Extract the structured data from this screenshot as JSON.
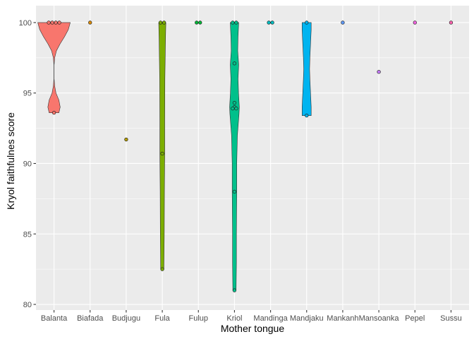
{
  "chart_data": {
    "type": "violin",
    "xlabel": "Mother tongue",
    "ylabel": "Kryol faithfulnes score",
    "ylim": [
      79.6,
      101.2
    ],
    "yticks": [
      80,
      85,
      90,
      95,
      100
    ],
    "grid": true,
    "legend": "none",
    "categories": [
      "Balanta",
      "Biafada",
      "Budjugu",
      "Fula",
      "Fulup",
      "Kriol",
      "Mandinga",
      "Mandjaku",
      "Mankanh",
      "Mansoanka",
      "Pepel",
      "Sussu"
    ],
    "colors": [
      "#F8766D",
      "#DE8C00",
      "#B79F00",
      "#7CAE00",
      "#00BA38",
      "#00C08B",
      "#00BFC4",
      "#00B4F0",
      "#619CFF",
      "#C77CFF",
      "#F564E3",
      "#FF64B0"
    ],
    "groups": [
      {
        "name": "Balanta",
        "points": [
          100,
          100,
          100,
          100,
          93.6
        ],
        "density": [
          [
            93.6,
            0.3
          ],
          [
            94.0,
            0.38
          ],
          [
            94.5,
            0.3
          ],
          [
            95.0,
            0.12
          ],
          [
            95.5,
            0.04
          ],
          [
            96.0,
            0.005
          ],
          [
            97.0,
            0.005
          ],
          [
            97.5,
            0.04
          ],
          [
            98.0,
            0.15
          ],
          [
            98.5,
            0.38
          ],
          [
            99.0,
            0.65
          ],
          [
            99.5,
            0.88
          ],
          [
            100.0,
            1.0
          ]
        ]
      },
      {
        "name": "Biafada",
        "points": [
          100
        ],
        "density": []
      },
      {
        "name": "Budjugu",
        "points": [
          91.7
        ],
        "density": []
      },
      {
        "name": "Fula",
        "points": [
          100,
          100,
          90.7,
          82.5
        ],
        "density": [
          [
            82.5,
            0.1
          ],
          [
            85.0,
            0.12
          ],
          [
            88.0,
            0.13
          ],
          [
            90.7,
            0.15
          ],
          [
            93.0,
            0.15
          ],
          [
            96.0,
            0.16
          ],
          [
            99.0,
            0.2
          ],
          [
            100.0,
            0.22
          ]
        ]
      },
      {
        "name": "Fulup",
        "points": [
          100,
          100
        ],
        "density": []
      },
      {
        "name": "Kriol",
        "points": [
          100,
          100,
          97.1,
          94.3,
          94.0,
          93.9,
          93.9,
          88.0,
          81.0
        ],
        "density": [
          [
            81.0,
            0.1
          ],
          [
            83.0,
            0.12
          ],
          [
            85.0,
            0.12
          ],
          [
            88.0,
            0.14
          ],
          [
            90.0,
            0.14
          ],
          [
            92.0,
            0.18
          ],
          [
            93.5,
            0.28
          ],
          [
            94.0,
            0.3
          ],
          [
            95.0,
            0.25
          ],
          [
            96.0,
            0.22
          ],
          [
            97.0,
            0.26
          ],
          [
            98.0,
            0.2
          ],
          [
            99.0,
            0.22
          ],
          [
            100.0,
            0.26
          ]
        ]
      },
      {
        "name": "Mandinga",
        "points": [
          100,
          100
        ],
        "density": []
      },
      {
        "name": "Mandjaku",
        "points": [
          100,
          93.4
        ],
        "density": [
          [
            93.4,
            0.28
          ],
          [
            94.0,
            0.28
          ],
          [
            95.0,
            0.24
          ],
          [
            96.0,
            0.2
          ],
          [
            96.7,
            0.18
          ],
          [
            97.5,
            0.2
          ],
          [
            98.5,
            0.24
          ],
          [
            99.5,
            0.28
          ],
          [
            100.0,
            0.28
          ]
        ]
      },
      {
        "name": "Mankanh",
        "points": [
          100
        ],
        "density": []
      },
      {
        "name": "Mansoanka",
        "points": [
          96.5
        ],
        "density": []
      },
      {
        "name": "Pepel",
        "points": [
          100
        ],
        "density": []
      },
      {
        "name": "Sussu",
        "points": [
          100
        ],
        "density": []
      }
    ]
  }
}
